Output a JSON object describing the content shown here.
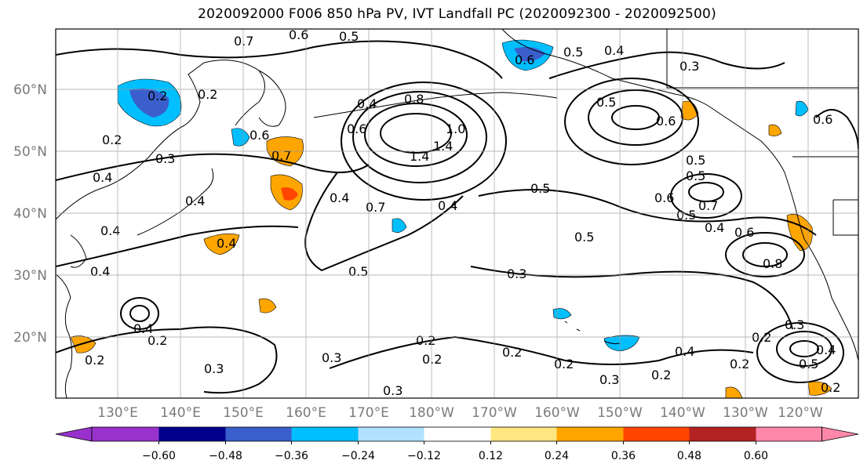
{
  "title": "2020092000 F006 850 hPa PV, IVT Landfall PC (2020092300 - 2020092500)",
  "lat_labels": [
    "60°N",
    "50°N",
    "40°N",
    "30°N",
    "20°N"
  ],
  "lon_labels": [
    "130°E",
    "140°E",
    "150°E",
    "160°E",
    "170°E",
    "180°W",
    "170°W",
    "160°W",
    "150°W",
    "140°W",
    "130°W",
    "120°W"
  ],
  "colorbar": {
    "ticks": [
      "−0.60",
      "−0.48",
      "−0.36",
      "−0.24",
      "−0.12",
      "0.12",
      "0.24",
      "0.36",
      "0.48",
      "0.60"
    ],
    "colors": [
      "#9932cc",
      "#00008b",
      "#3a5fcd",
      "#00bfff",
      "#b0e2ff",
      "#ffffff",
      "#ffe680",
      "#ffa500",
      "#ff4500",
      "#b22222",
      "#ff88aa"
    ]
  },
  "contour_labels": [
    "0.7",
    "0.6",
    "0.5",
    "0.6",
    "0.5",
    "0.4",
    "0.3",
    "0.2",
    "0.2",
    "0.6",
    "0.4",
    "0.6",
    "0.8",
    "1.0",
    "1.4",
    "1.4",
    "0.5",
    "0.6",
    "0.5",
    "0.2",
    "0.4",
    "0.4",
    "0.3",
    "0.4",
    "0.7",
    "0.4",
    "0.7",
    "0.5",
    "0.5",
    "0.4",
    "0.5",
    "0.4",
    "0.6",
    "0.8",
    "0.5",
    "0.6",
    "0.5",
    "0.6",
    "0.7",
    "0.4",
    "0.3",
    "0.3",
    "0.2",
    "0.2",
    "0.2",
    "0.3",
    "0.2",
    "0.3",
    "0.2",
    "0.2",
    "0.4",
    "0.3",
    "0.2",
    "0.2",
    "0.2",
    "0.4",
    "0.4",
    "0.5",
    "0.3",
    "0.2",
    "0.4"
  ]
}
